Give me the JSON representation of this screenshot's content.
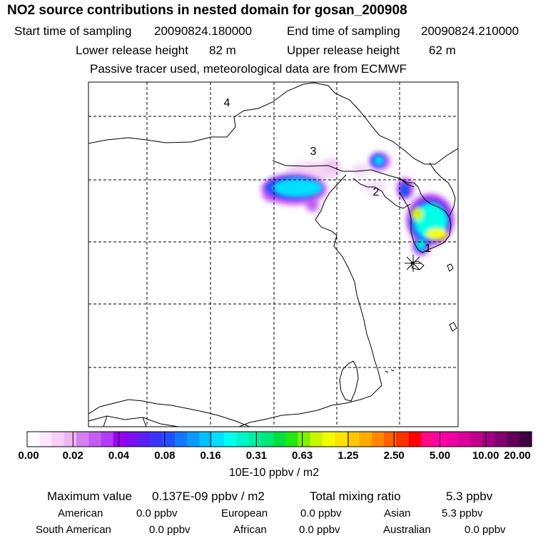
{
  "header": {
    "title": "NO2 source contributions in nested domain for gosan_200908",
    "start_time_label": "Start time of sampling",
    "start_time": "20090824.180000",
    "end_time_label": "End time of sampling",
    "end_time": "20090824.210000",
    "lower_height_label": "Lower release height",
    "lower_height": "82 m",
    "upper_height_label": "Upper release height",
    "upper_height": "62 m",
    "note": "Passive tracer used, meteorological data are from ECMWF"
  },
  "map": {
    "region_labels": [
      "4",
      "3",
      "2",
      "1"
    ],
    "receptor_marker": "star-icon",
    "colors": {
      "border": "#000000",
      "grid": "#000000"
    }
  },
  "colorbar": {
    "tick_labels": [
      "0.00",
      "0.02",
      "0.04",
      "0.08",
      "0.16",
      "0.31",
      "0.63",
      "1.25",
      "2.50",
      "5.00",
      "10.00",
      "20.00"
    ],
    "unit_label": "10E-10 ppbv / m2",
    "colors": [
      "#ffffff",
      "#fde8fd",
      "#f7cff7",
      "#efb4f3",
      "#d380f1",
      "#c35ef1",
      "#b33df5",
      "#9b00f0",
      "#7a10f0",
      "#5a20f4",
      "#3a35f8",
      "#2050ff",
      "#1477ff",
      "#0a9bff",
      "#00c0ff",
      "#00e0ff",
      "#00fff0",
      "#00f5c8",
      "#00eea0",
      "#00e878",
      "#00e040",
      "#20e810",
      "#80f000",
      "#c8f500",
      "#f0ff00",
      "#ffe400",
      "#ffc800",
      "#ffaa00",
      "#ff8800",
      "#ff6000",
      "#ff3000",
      "#ff0000",
      "#ff0a80",
      "#ff00a8",
      "#f000a0",
      "#d80098",
      "#c0008c",
      "#a00080",
      "#800070",
      "#600058",
      "#400040"
    ]
  },
  "stats": {
    "max_label": "Maximum value",
    "max_value": "0.137E-09 ppbv / m2",
    "total_label": "Total mixing ratio",
    "total_value": "5.3 ppbv",
    "contributions": [
      {
        "name": "American",
        "value": "0.0 ppbv"
      },
      {
        "name": "European",
        "value": "0.0 ppbv"
      },
      {
        "name": "Asian",
        "value": "5.3 ppbv"
      },
      {
        "name": "South American",
        "value": "0.0 ppbv"
      },
      {
        "name": "African",
        "value": "0.0 ppbv"
      },
      {
        "name": "Australian",
        "value": "0.0 ppbv"
      }
    ]
  }
}
